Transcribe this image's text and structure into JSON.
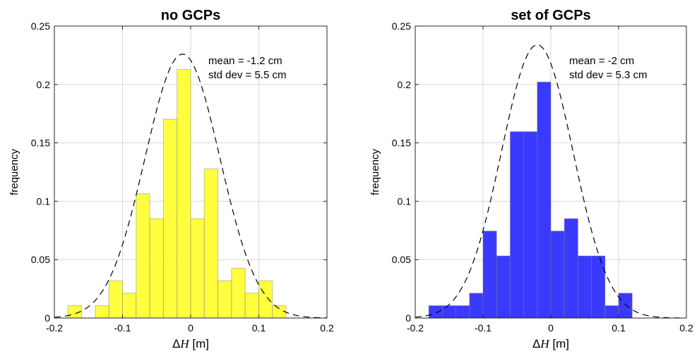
{
  "chart_data": [
    {
      "type": "bar",
      "title": "no GCPs",
      "xlabel_symbol": "ΔH",
      "xlabel_unit": " [m]",
      "ylabel": "frequency",
      "xlim": [
        -0.2,
        0.2
      ],
      "ylim": [
        0,
        0.25
      ],
      "xticks": [
        "-0.2",
        "-0.1",
        "0",
        "0.1",
        "0.2"
      ],
      "yticks": [
        "0",
        "0.05",
        "0.1",
        "0.15",
        "0.2",
        "0.25"
      ],
      "grid": true,
      "bar_color": "#ffff24",
      "bin_width": 0.02,
      "bin_centers": [
        -0.17,
        -0.13,
        -0.11,
        -0.09,
        -0.07,
        -0.05,
        -0.03,
        -0.01,
        0.01,
        0.03,
        0.05,
        0.07,
        0.09,
        0.11,
        0.13
      ],
      "values": [
        0.0107,
        0.0107,
        0.0319,
        0.0213,
        0.1064,
        0.0851,
        0.1702,
        0.2128,
        0.0851,
        0.1277,
        0.0319,
        0.0426,
        0.0213,
        0.0319,
        0.0107
      ],
      "fit": {
        "mean": -0.012,
        "std": 0.055,
        "peak": 0.226
      },
      "annotations": [
        "mean = -1.2 cm",
        "std dev = 5.5 cm"
      ]
    },
    {
      "type": "bar",
      "title": "set of GCPs",
      "xlabel_symbol": "ΔH",
      "xlabel_unit": " [m]",
      "ylabel": "frequency",
      "xlim": [
        -0.2,
        0.2
      ],
      "ylim": [
        0,
        0.25
      ],
      "xticks": [
        "-0.2",
        "-0.1",
        "0",
        "0.1",
        "0.2"
      ],
      "yticks": [
        "0",
        "0.05",
        "0.1",
        "0.15",
        "0.2",
        "0.25"
      ],
      "grid": true,
      "bar_color": "#1f1fff",
      "bin_width": 0.02,
      "bin_centers": [
        -0.17,
        -0.15,
        -0.13,
        -0.11,
        -0.09,
        -0.07,
        -0.05,
        -0.03,
        -0.01,
        0.01,
        0.03,
        0.05,
        0.07,
        0.09,
        0.11
      ],
      "values": [
        0.0106,
        0.0106,
        0.0106,
        0.0213,
        0.0745,
        0.0532,
        0.1596,
        0.1596,
        0.2021,
        0.0745,
        0.0851,
        0.0532,
        0.0532,
        0.0106,
        0.0213
      ],
      "fit": {
        "mean": -0.02,
        "std": 0.053,
        "peak": 0.234
      },
      "annotations": [
        "mean = -2 cm",
        "std dev = 5.3 cm"
      ]
    }
  ]
}
